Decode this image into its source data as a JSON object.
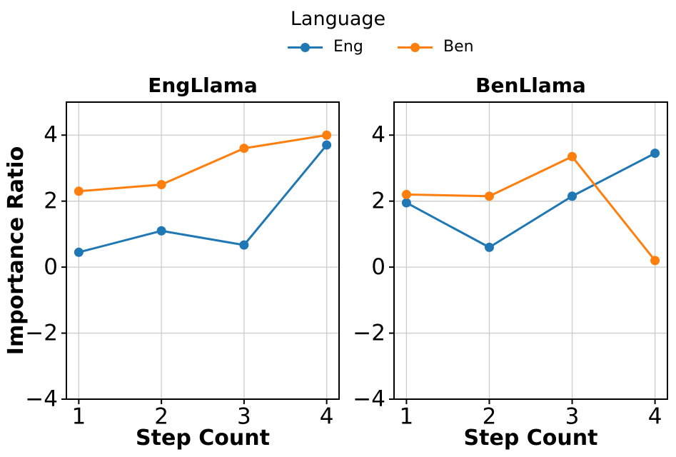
{
  "figure": {
    "background": "#ffffff"
  },
  "legend": {
    "title": "Language",
    "items": [
      {
        "label": "Eng",
        "color": "#1f77b4"
      },
      {
        "label": "Ben",
        "color": "#ff7f0e"
      }
    ]
  },
  "axes_style": {
    "grid_color": "#cccccc",
    "spine_color": "#000000",
    "tick_color": "#000000",
    "grid": "on"
  },
  "chart_data": [
    {
      "type": "line",
      "title": "EngLlama",
      "xlabel": "Step Count",
      "ylabel": "Importance Ratio",
      "x": [
        1,
        2,
        3,
        4
      ],
      "xticks": [
        1,
        2,
        3,
        4
      ],
      "yticks": [
        4,
        2,
        0,
        -2,
        -4
      ],
      "xlim": [
        0.85,
        4.15
      ],
      "ylim": [
        -4,
        5
      ],
      "grid": true,
      "legend_position": "figure top center",
      "series": [
        {
          "name": "Eng",
          "color": "#1f77b4",
          "marker": "circle",
          "values": [
            0.45,
            1.1,
            0.67,
            3.7
          ]
        },
        {
          "name": "Ben",
          "color": "#ff7f0e",
          "marker": "circle",
          "values": [
            2.3,
            2.5,
            3.6,
            4.0
          ]
        }
      ]
    },
    {
      "type": "line",
      "title": "BenLlama",
      "xlabel": "Step Count",
      "ylabel": "",
      "x": [
        1,
        2,
        3,
        4
      ],
      "xticks": [
        1,
        2,
        3,
        4
      ],
      "yticks": [
        4,
        2,
        0,
        -2,
        -4
      ],
      "xlim": [
        0.85,
        4.15
      ],
      "ylim": [
        -4,
        5
      ],
      "grid": true,
      "legend_position": "figure top center",
      "series": [
        {
          "name": "Eng",
          "color": "#1f77b4",
          "marker": "circle",
          "values": [
            1.95,
            0.6,
            2.15,
            3.45
          ]
        },
        {
          "name": "Ben",
          "color": "#ff7f0e",
          "marker": "circle",
          "values": [
            2.2,
            2.15,
            3.35,
            0.2
          ]
        }
      ]
    }
  ]
}
